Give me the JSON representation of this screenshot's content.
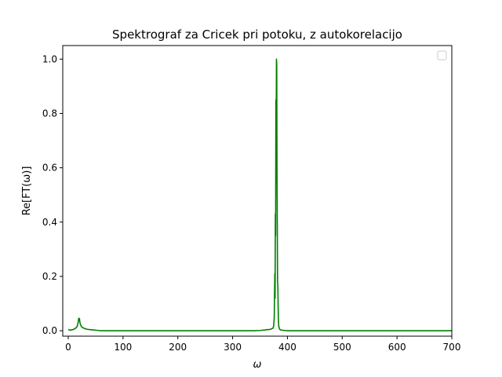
{
  "chart_data": {
    "type": "line",
    "title": "Spektrograf za Cricek pri potoku, z autokorelacijo",
    "xlabel": "ω",
    "ylabel": "Re[FT(ω)]",
    "xlim": [
      -10,
      700
    ],
    "ylim": [
      -0.02,
      1.05
    ],
    "xticks": [
      0,
      100,
      200,
      300,
      400,
      500,
      600,
      700
    ],
    "yticks": [
      0.0,
      0.2,
      0.4,
      0.6,
      0.8,
      1.0
    ],
    "xtick_labels": [
      "0",
      "100",
      "200",
      "300",
      "400",
      "500",
      "600",
      "700"
    ],
    "ytick_labels": [
      "0.0",
      "0.2",
      "0.4",
      "0.6",
      "0.8",
      "1.0"
    ],
    "grid": false,
    "legend": {
      "placement": "top-right",
      "entries": []
    },
    "series": [
      {
        "color": "#008000",
        "x": [
          0,
          2,
          4,
          6,
          8,
          10,
          12,
          14,
          16,
          17,
          18,
          19,
          19.5,
          20,
          20.5,
          21,
          22,
          23,
          24,
          26,
          28,
          30,
          33,
          36,
          40,
          45,
          50,
          55,
          60,
          100,
          200,
          300,
          340,
          350,
          355,
          360,
          362,
          365,
          368,
          370,
          372,
          374,
          375,
          376,
          377,
          377.5,
          378,
          378.5,
          379,
          379.5,
          380,
          380.5,
          381,
          381.5,
          382,
          382.5,
          383,
          383.5,
          384,
          385,
          386,
          388,
          390,
          395,
          400,
          500,
          600,
          700
        ],
        "y": [
          0.005,
          0.003,
          0.002,
          0.003,
          0.004,
          0.005,
          0.008,
          0.01,
          0.015,
          0.02,
          0.03,
          0.044,
          0.046,
          0.04,
          0.045,
          0.035,
          0.025,
          0.02,
          0.015,
          0.012,
          0.01,
          0.008,
          0.006,
          0.005,
          0.004,
          0.003,
          0.002,
          0.001,
          0.0,
          0.0,
          0.0,
          0.0,
          0.0,
          0.001,
          0.002,
          0.003,
          0.004,
          0.004,
          0.005,
          0.006,
          0.008,
          0.01,
          0.02,
          0.05,
          0.21,
          0.12,
          0.43,
          0.35,
          0.85,
          0.7,
          1.0,
          0.98,
          0.6,
          0.4,
          0.18,
          0.17,
          0.1,
          0.05,
          0.02,
          0.01,
          0.005,
          0.003,
          0.002,
          0.001,
          0.0,
          0.0,
          0.0,
          0.0
        ]
      }
    ]
  }
}
